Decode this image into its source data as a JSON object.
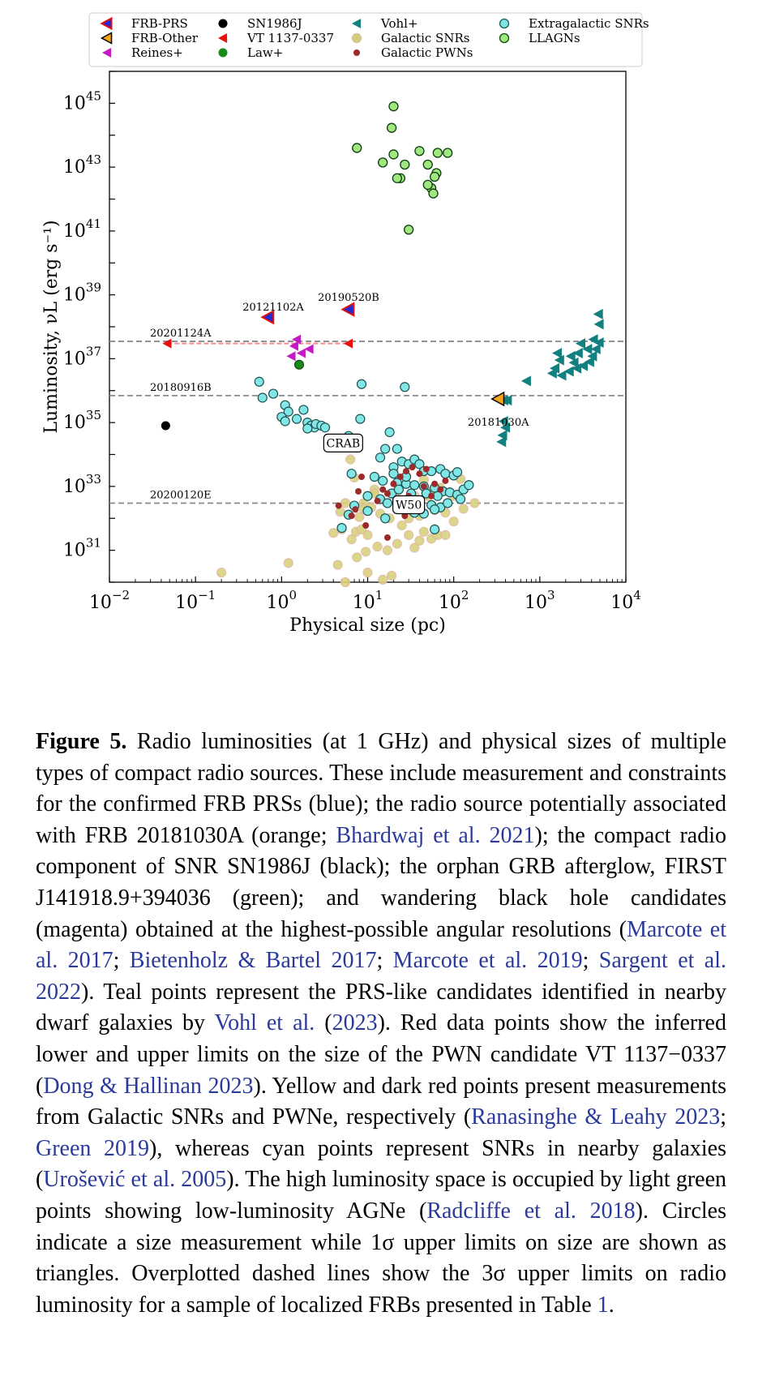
{
  "chart_data": {
    "type": "scatter",
    "xlabel": "Physical size (pc)",
    "ylabel": "Luminosity, νL (erg s⁻¹)",
    "xscale": "log",
    "yscale": "log",
    "xlim": [
      0.01,
      10000
    ],
    "ylim": [
      1e+30,
      1e+46
    ],
    "x_ticks": [
      {
        "base": "10",
        "exp": "−2"
      },
      {
        "base": "10",
        "exp": "−1"
      },
      {
        "base": "10",
        "exp": "0"
      },
      {
        "base": "10",
        "exp": "1"
      },
      {
        "base": "10",
        "exp": "2"
      },
      {
        "base": "10",
        "exp": "3"
      },
      {
        "base": "10",
        "exp": "4"
      }
    ],
    "y_ticks": [
      {
        "base": "10",
        "exp": "31"
      },
      {
        "base": "10",
        "exp": "33"
      },
      {
        "base": "10",
        "exp": "35"
      },
      {
        "base": "10",
        "exp": "37"
      },
      {
        "base": "10",
        "exp": "39"
      },
      {
        "base": "10",
        "exp": "41"
      },
      {
        "base": "10",
        "exp": "43"
      },
      {
        "base": "10",
        "exp": "45"
      }
    ],
    "grid": false,
    "legend_placement": "top",
    "legend": [
      {
        "label": "FRB-PRS",
        "color": "#1f2bd6",
        "edge": "#e01010",
        "marker": "triangle-left-split"
      },
      {
        "label": "SN1986J",
        "color": "#000000",
        "marker": "circle"
      },
      {
        "label": "Vohl+",
        "color": "#138080",
        "marker": "triangle-left"
      },
      {
        "label": "Extragalactic SNRs",
        "color": "#7fe3e3",
        "edge": "#1a5e5e",
        "marker": "circle-open"
      },
      {
        "label": "FRB-Other",
        "color": "#f4a41c",
        "edge": "#000000",
        "marker": "triangle-left-open"
      },
      {
        "label": "VT 1137-0337",
        "color": "#e81010",
        "marker": "triangle-left"
      },
      {
        "label": "Galactic SNRs",
        "color": "#cfcf7a",
        "marker": "circle-soft"
      },
      {
        "label": "LLAGNs",
        "color": "#9fe87f",
        "edge": "#0e4a0e",
        "marker": "circle-open"
      },
      {
        "label": "Reines+",
        "color": "#c41ac4",
        "marker": "triangle-left"
      },
      {
        "label": "Law+",
        "color": "#1a8a1a",
        "marker": "circle"
      },
      {
        "label": "Galactic PWNs",
        "color": "#9b2b2b",
        "marker": "circle-small"
      }
    ],
    "hlines": [
      {
        "label": "20201124A",
        "y": 3.5e+37
      },
      {
        "label": "20180916B",
        "y": 7e+35
      },
      {
        "label": "20200120E",
        "y": 3e+32
      }
    ],
    "annotations": [
      {
        "text": "20121102A",
        "x": 0.8,
        "y": 1.6e+38
      },
      {
        "text": "20190520B",
        "x": 6.0,
        "y": 3.2e+38
      },
      {
        "text": "20181030A",
        "x": 330,
        "y": 3.2e+35
      },
      {
        "text": "CRAB",
        "x": 5.2,
        "y": 1.2e+34,
        "boxed": true
      },
      {
        "text": "W50",
        "x": 30,
        "y": 1.4e+32,
        "boxed": true
      }
    ],
    "series": [
      {
        "name": "FRB-PRS",
        "points": [
          [
            0.7,
            2e+38
          ],
          [
            6.0,
            3.5e+38
          ]
        ]
      },
      {
        "name": "FRB-Other",
        "points": [
          [
            330,
            5.5e+35
          ]
        ]
      },
      {
        "name": "Reines+",
        "points": [
          [
            1.5,
            4e+37
          ],
          [
            1.4,
            2.5e+37
          ],
          [
            1.7,
            1.5e+37
          ],
          [
            2.1,
            2e+37
          ],
          [
            1.3,
            1.2e+37
          ]
        ]
      },
      {
        "name": "SN1986J",
        "points": [
          [
            0.045,
            8e+34
          ]
        ]
      },
      {
        "name": "VT 1137-0337",
        "points": [
          [
            0.047,
            3e+37
          ],
          [
            6.0,
            3e+37
          ]
        ]
      },
      {
        "name": "Law+",
        "points": [
          [
            1.6,
            6.5e+36
          ]
        ]
      },
      {
        "name": "Vohl+",
        "points": [
          [
            4800,
            2.5e+38
          ],
          [
            4900,
            1.2e+38
          ],
          [
            4500,
            2e+37
          ],
          [
            4900,
            3.2e+37
          ],
          [
            4100,
            1.2e+37
          ],
          [
            3800,
            8e+36
          ],
          [
            3200,
            6e+36
          ],
          [
            2800,
            1.5e+37
          ],
          [
            2700,
            5e+36
          ],
          [
            2500,
            7.5e+36
          ],
          [
            2200,
            4e+36
          ],
          [
            1800,
            3e+36
          ],
          [
            1600,
            1.5e+37
          ],
          [
            1700,
            9e+36
          ],
          [
            1500,
            5e+36
          ],
          [
            1400,
            3.5e+36
          ],
          [
            700,
            2e+36
          ],
          [
            3000,
            3e+37
          ],
          [
            2300,
            1.2e+37
          ],
          [
            3600,
            2e+37
          ],
          [
            4200,
            4e+37
          ],
          [
            380,
            5e+35
          ],
          [
            420,
            5e+35
          ],
          [
            380,
            1.1e+35
          ],
          [
            400,
            7e+34
          ],
          [
            370,
            4e+34
          ],
          [
            360,
            2.5e+34
          ]
        ]
      },
      {
        "name": "LLAGNs",
        "points": [
          [
            20,
            8e+44
          ],
          [
            19,
            1.7e+44
          ],
          [
            7.5,
            4e+43
          ],
          [
            20,
            2.5e+43
          ],
          [
            40,
            3.2e+43
          ],
          [
            65,
            2.8e+43
          ],
          [
            85,
            2.8e+43
          ],
          [
            15,
            1.4e+43
          ],
          [
            27,
            1.2e+43
          ],
          [
            50,
            1.2e+43
          ],
          [
            63,
            6.5e+42
          ],
          [
            24,
            4.5e+42
          ],
          [
            22,
            4.5e+42
          ],
          [
            60,
            5e+42
          ],
          [
            55,
            2.2e+42
          ],
          [
            58,
            1.5e+42
          ],
          [
            50,
            2.8e+42
          ],
          [
            30,
            1.1e+41
          ]
        ]
      },
      {
        "name": "Extragalactic SNRs",
        "points": [
          [
            0.55,
            1.9e+36
          ],
          [
            0.6,
            6e+35
          ],
          [
            0.8,
            8e+35
          ],
          [
            1.1,
            3.5e+35
          ],
          [
            1.2,
            2.2e+35
          ],
          [
            1.0,
            1.5e+35
          ],
          [
            1.1,
            1.1e+35
          ],
          [
            1.5,
            1.3e+35
          ],
          [
            1.8,
            2.5e+35
          ],
          [
            2.0,
            1e+35
          ],
          [
            2.2,
            8e+34
          ],
          [
            2.4,
            7e+34
          ],
          [
            2.5,
            9e+34
          ],
          [
            2.9,
            8e+34
          ],
          [
            3.2,
            7e+34
          ],
          [
            2.0,
            6.5e+34
          ],
          [
            8.5,
            1.6e+36
          ],
          [
            27,
            1.3e+36
          ],
          [
            8.2,
            1.3e+35
          ],
          [
            6.0,
            3.8e+34
          ],
          [
            18,
            5e+34
          ],
          [
            16,
            1.5e+34
          ],
          [
            22,
            1.5e+34
          ],
          [
            14,
            8e+33
          ],
          [
            25,
            6e+33
          ],
          [
            30,
            5e+33
          ],
          [
            35,
            7e+33
          ],
          [
            40,
            5e+33
          ],
          [
            20,
            4e+33
          ],
          [
            45,
            3e+33
          ],
          [
            55,
            3e+33
          ],
          [
            70,
            3.5e+33
          ],
          [
            80,
            2.5e+33
          ],
          [
            100,
            2.2e+33
          ],
          [
            110,
            2.8e+33
          ],
          [
            12,
            2e+33
          ],
          [
            15,
            1.5e+33
          ],
          [
            22,
            1.3e+33
          ],
          [
            28,
            1.2e+33
          ],
          [
            35,
            1.1e+33
          ],
          [
            45,
            1e+33
          ],
          [
            60,
            9e+32
          ],
          [
            75,
            7e+32
          ],
          [
            90,
            6.5e+32
          ],
          [
            110,
            5.5e+32
          ],
          [
            130,
            8e+32
          ],
          [
            150,
            1.1e+33
          ],
          [
            10,
            5e+32
          ],
          [
            14,
            4e+32
          ],
          [
            25,
            3.5e+32
          ],
          [
            40,
            3.2e+32
          ],
          [
            55,
            2.6e+32
          ],
          [
            70,
            2.2e+32
          ],
          [
            85,
            3e+32
          ],
          [
            120,
            4e+32
          ],
          [
            10,
            1.7e+32
          ],
          [
            7,
            2.5e+32
          ],
          [
            6,
            1.3e+32
          ],
          [
            30,
            2e+32
          ],
          [
            35,
            1.5e+32
          ],
          [
            45,
            1.4e+32
          ],
          [
            60,
            1.9e+32
          ],
          [
            17,
            3e+32
          ],
          [
            19,
            6e+32
          ],
          [
            23,
            8e+32
          ],
          [
            32,
            6e+32
          ],
          [
            48,
            6e+32
          ],
          [
            65,
            5e+32
          ],
          [
            5,
            5e+31
          ],
          [
            16,
            1e+32
          ],
          [
            60,
            4.5e+31
          ],
          [
            6.5,
            2.5e+33
          ],
          [
            20,
            2.5e+33
          ],
          [
            28,
            2e+33
          ]
        ]
      },
      {
        "name": "Galactic SNRs",
        "points": [
          [
            0.2,
            2e+30
          ],
          [
            1.2,
            4e+30
          ],
          [
            5.5,
            1e+30
          ],
          [
            6.5,
            2.2e+31
          ],
          [
            7.3,
            3.8e+31
          ],
          [
            5,
            4.5e+31
          ],
          [
            4,
            3.5e+31
          ],
          [
            4.5,
            3.5e+30
          ],
          [
            7.5,
            6e+30
          ],
          [
            8.5,
            4.5e+31
          ],
          [
            10,
            2e+30
          ],
          [
            13,
            1.3e+31
          ],
          [
            15,
            1.2e+30
          ],
          [
            17,
            1e+31
          ],
          [
            19,
            1.6e+30
          ],
          [
            25,
            6e+31
          ],
          [
            30,
            3e+31
          ],
          [
            40,
            2e+31
          ],
          [
            45,
            3.8e+31
          ],
          [
            55,
            2.3e+31
          ],
          [
            65,
            3e+31
          ],
          [
            80,
            3e+31
          ],
          [
            100,
            8e+31
          ],
          [
            130,
            2e+32
          ],
          [
            175,
            3e+32
          ],
          [
            150,
            1.1e+33
          ],
          [
            120,
            1.7e+33
          ],
          [
            7,
            1.9e+33
          ],
          [
            6.3,
            7e+33
          ],
          [
            7.5,
            1.6e+34
          ],
          [
            12,
            8e+32
          ],
          [
            9,
            3e+32
          ],
          [
            5.5,
            3e+32
          ],
          [
            4.8,
            1.6e+32
          ],
          [
            8,
            1.1e+32
          ],
          [
            11,
            2.2e+32
          ],
          [
            14,
            1.4e+32
          ],
          [
            25,
            3e+32
          ],
          [
            40,
            1.2e+32
          ],
          [
            60,
            1.8e+32
          ],
          [
            9,
            2e+32
          ],
          [
            12,
            6e+32
          ],
          [
            22,
            7e+32
          ],
          [
            35,
            5e+32
          ],
          [
            50,
            5e+32
          ],
          [
            20,
            3e+33
          ],
          [
            28,
            2.2e+33
          ],
          [
            45,
            1.6e+33
          ],
          [
            55,
            7e+32
          ],
          [
            70,
            9e+32
          ],
          [
            100,
            5e+32
          ],
          [
            18,
            1e+32
          ],
          [
            30,
            1e+32
          ],
          [
            80,
            1.5e+32
          ],
          [
            10,
            3e+31
          ],
          [
            22,
            1.6e+31
          ],
          [
            35,
            1.2e+31
          ],
          [
            9.5,
            9e+30
          ]
        ]
      },
      {
        "name": "Galactic PWNs",
        "points": [
          [
            5.8,
            2.5e+34
          ],
          [
            8.5,
            2e+33
          ],
          [
            7.8,
            7e+32
          ],
          [
            7.2,
            1.9e+32
          ],
          [
            6.5,
            1.2e+32
          ],
          [
            9.5,
            6e+31
          ],
          [
            17,
            2.5e+31
          ],
          [
            27,
            1.2e+32
          ],
          [
            17,
            6e+32
          ],
          [
            20,
            1.2e+33
          ],
          [
            24,
            2e+33
          ],
          [
            28,
            3e+33
          ],
          [
            33,
            4e+33
          ],
          [
            40,
            2.5e+33
          ],
          [
            45,
            1e+33
          ],
          [
            55,
            5e+32
          ],
          [
            70,
            8e+32
          ],
          [
            80,
            1.5e+33
          ],
          [
            48,
            3.5e+33
          ],
          [
            15,
            8e+32
          ],
          [
            30,
            5e+32
          ],
          [
            25,
            3.5e+32
          ],
          [
            35,
            2.5e+32
          ],
          [
            60,
            1.2e+33
          ],
          [
            4.6,
            2.5e+32
          ],
          [
            13,
            3.5e+32
          ]
        ]
      }
    ]
  },
  "caption": {
    "label": "Figure 5.",
    "s1": "Radio luminosities (at 1 GHz) and physical sizes of multiple types of compact radio sources. These include measurement and constraints for the confirmed FRB PRSs (blue); the radio source potentially associated with FRB 20181030A (orange;",
    "c1": "Bhardwaj et al. 2021",
    "s2": "); the compact radio component of SNR SN1986J (black); the orphan GRB afterglow, FIRST J141918.9+394036 (green); and wandering black hole candidates (magenta) obtained at the highest-possible angular resolutions (",
    "c2": "Marcote et al. 2017",
    "s3": ";",
    "c3": "Bietenholz & Bartel 2017",
    "s4": ";",
    "c4": "Marcote et al. 2019",
    "s5": ";",
    "c5": "Sargent et al. 2022",
    "s6": "). Teal points represent the PRS-like candidates identified in nearby dwarf galaxies by",
    "c6": "Vohl et al.",
    "s7": "(",
    "c7": "2023",
    "s8": "). Red data points show the inferred lower and upper limits on the size of the PWN candidate VT 1137−0337 (",
    "c8": "Dong & Hallinan 2023",
    "s9": "). Yellow and dark red points present measurements from Galactic SNRs and PWNe, respectively (",
    "c9": "Ranasinghe & Leahy 2023",
    "s10": ";",
    "c10": "Green 2019",
    "s11": "), whereas cyan points represent SNRs in nearby galaxies (",
    "c11": "Urošević et al. 2005",
    "s12": "). The high luminosity space is occupied by light green points showing low-luminosity AGNe (",
    "c12": "Radcliffe et al. 2018",
    "s13": "). Circles indicate a size measurement while 1σ upper limits on size are shown as triangles. Overplotted dashed lines show the 3σ upper limits on radio luminosity for a sample of localized FRBs presented in Table",
    "c13": "1",
    "s14": "."
  }
}
